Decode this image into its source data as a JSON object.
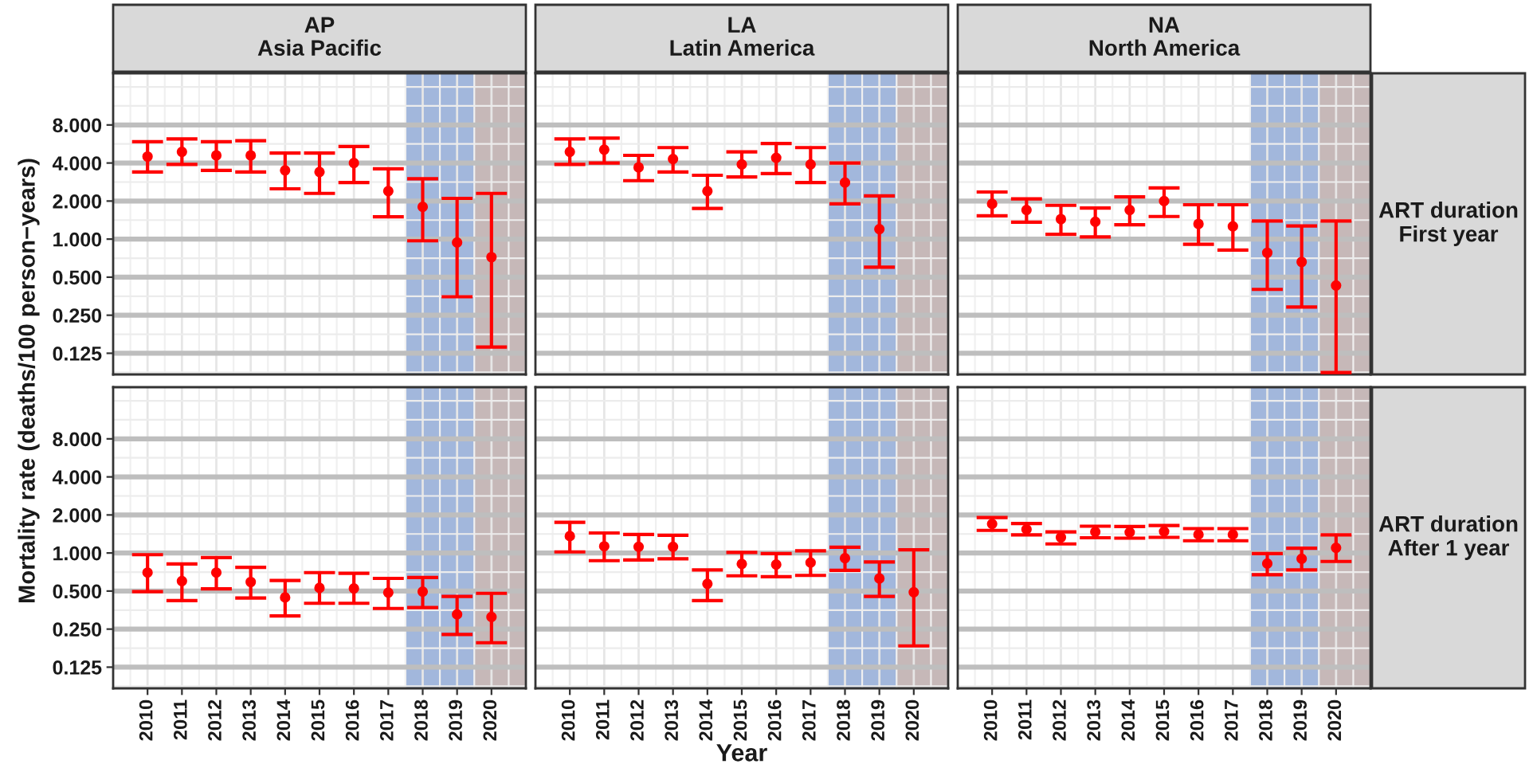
{
  "chart_data": [
    {
      "type": "scatter",
      "title": "AP\nAsia Pacific",
      "ylabel": "Mortality rate (deaths/100 person−years)",
      "log": true,
      "grid": true,
      "marker": "circle",
      "tick_labels": "y",
      "xlim": [
        2009,
        2021
      ],
      "xticks": [
        2010,
        2011,
        2012,
        2013,
        2014,
        2015,
        2016,
        2017,
        2018,
        2019,
        2020
      ],
      "ylim": [
        0.085,
        20.5
      ],
      "yticks": [
        {
          "value": 0.125,
          "label": "0.125"
        },
        {
          "value": 0.25,
          "label": "0.250"
        },
        {
          "value": 0.5,
          "label": "0.500"
        },
        {
          "value": 1,
          "label": "1.000"
        },
        {
          "value": 2,
          "label": "2.000"
        },
        {
          "value": 4,
          "label": "4.000"
        },
        {
          "value": 8,
          "label": "8.000"
        }
      ],
      "bands": [
        {
          "axis": "x",
          "from": 2017.5,
          "to": 2019.5,
          "color": "#a2b7dc"
        },
        {
          "axis": "x",
          "from": 2019.5,
          "to": 2021,
          "color": "#c6b8b8"
        }
      ],
      "series": [
        {
          "color": "#ff0000",
          "x": [
            2010,
            2011,
            2012,
            2013,
            2014,
            2015,
            2016,
            2017,
            2018,
            2019,
            2020
          ],
          "values": [
            4.5,
            4.9,
            4.6,
            4.6,
            3.5,
            3.4,
            4.0,
            2.4,
            1.8,
            0.94,
            0.72
          ],
          "errors": [
            [
              3.4,
              5.9
            ],
            [
              3.9,
              6.2
            ],
            [
              3.5,
              5.9
            ],
            [
              3.4,
              6.0
            ],
            [
              2.5,
              4.8
            ],
            [
              2.3,
              4.8
            ],
            [
              2.8,
              5.4
            ],
            [
              1.5,
              3.6
            ],
            [
              0.97,
              3.0
            ],
            [
              0.35,
              2.1
            ],
            [
              0.14,
              2.3
            ]
          ]
        }
      ]
    },
    {
      "type": "scatter",
      "title": "LA\nLatin America",
      "log": true,
      "grid": true,
      "marker": "circle",
      "tick_labels": false,
      "xlim": [
        2009,
        2021
      ],
      "xticks": [
        2010,
        2011,
        2012,
        2013,
        2014,
        2015,
        2016,
        2017,
        2018,
        2019,
        2020
      ],
      "ylim": [
        0.085,
        20.5
      ],
      "yticks": [
        0.125,
        0.25,
        0.5,
        1,
        2,
        4,
        8
      ],
      "bands": [
        {
          "axis": "x",
          "from": 2017.5,
          "to": 2019.5,
          "color": "#a2b7dc"
        },
        {
          "axis": "x",
          "from": 2019.5,
          "to": 2021,
          "color": "#c6b8b8"
        }
      ],
      "series": [
        {
          "color": "#ff0000",
          "x": [
            2010,
            2011,
            2012,
            2013,
            2014,
            2015,
            2016,
            2017,
            2018,
            2019
          ],
          "values": [
            4.9,
            5.1,
            3.7,
            4.3,
            2.4,
            3.9,
            4.4,
            3.9,
            2.8,
            1.2
          ],
          "errors": [
            [
              3.9,
              6.2
            ],
            [
              4.0,
              6.3
            ],
            [
              2.9,
              4.6
            ],
            [
              3.4,
              5.3
            ],
            [
              1.75,
              3.2
            ],
            [
              3.1,
              4.9
            ],
            [
              3.3,
              5.7
            ],
            [
              2.8,
              5.3
            ],
            [
              1.9,
              4.0
            ],
            [
              0.6,
              2.2
            ]
          ]
        }
      ]
    },
    {
      "type": "scatter",
      "title": "NA\nNorth America",
      "log": true,
      "grid": true,
      "marker": "circle",
      "tick_labels": false,
      "annotations": [
        "ART duration\nFirst year"
      ],
      "xlim": [
        2009,
        2021
      ],
      "xticks": [
        2010,
        2011,
        2012,
        2013,
        2014,
        2015,
        2016,
        2017,
        2018,
        2019,
        2020
      ],
      "ylim": [
        0.085,
        20.5
      ],
      "yticks": [
        0.125,
        0.25,
        0.5,
        1,
        2,
        4,
        8
      ],
      "bands": [
        {
          "axis": "x",
          "from": 2017.5,
          "to": 2019.5,
          "color": "#a2b7dc"
        },
        {
          "axis": "x",
          "from": 2019.5,
          "to": 2021,
          "color": "#c6b8b8"
        }
      ],
      "series": [
        {
          "color": "#ff0000",
          "x": [
            2010,
            2011,
            2012,
            2013,
            2014,
            2015,
            2016,
            2017,
            2018,
            2019,
            2020
          ],
          "values": [
            1.9,
            1.7,
            1.44,
            1.37,
            1.7,
            2.0,
            1.32,
            1.26,
            0.78,
            0.66,
            0.43
          ],
          "errors": [
            [
              1.53,
              2.36
            ],
            [
              1.36,
              2.08
            ],
            [
              1.09,
              1.85
            ],
            [
              1.04,
              1.76
            ],
            [
              1.3,
              2.16
            ],
            [
              1.51,
              2.54
            ],
            [
              0.91,
              1.87
            ],
            [
              0.82,
              1.87
            ],
            [
              0.4,
              1.39
            ],
            [
              0.29,
              1.27
            ],
            [
              0.088,
              1.39
            ]
          ]
        }
      ]
    },
    {
      "type": "scatter",
      "log": true,
      "grid": true,
      "marker": "circle",
      "xlim": [
        2009,
        2021
      ],
      "xticks": [
        2010,
        2011,
        2012,
        2013,
        2014,
        2015,
        2016,
        2017,
        2018,
        2019,
        2020
      ],
      "ylim": [
        0.085,
        20.5
      ],
      "yticks": [
        {
          "value": 0.125,
          "label": "0.125"
        },
        {
          "value": 0.25,
          "label": "0.250"
        },
        {
          "value": 0.5,
          "label": "0.500"
        },
        {
          "value": 1,
          "label": "1.000"
        },
        {
          "value": 2,
          "label": "2.000"
        },
        {
          "value": 4,
          "label": "4.000"
        },
        {
          "value": 8,
          "label": "8.000"
        }
      ],
      "bands": [
        {
          "axis": "x",
          "from": 2017.5,
          "to": 2019.5,
          "color": "#a2b7dc"
        },
        {
          "axis": "x",
          "from": 2019.5,
          "to": 2021,
          "color": "#c6b8b8"
        }
      ],
      "series": [
        {
          "color": "#ff0000",
          "x": [
            2010,
            2011,
            2012,
            2013,
            2014,
            2015,
            2016,
            2017,
            2018,
            2019,
            2020
          ],
          "values": [
            0.7,
            0.6,
            0.7,
            0.59,
            0.445,
            0.53,
            0.525,
            0.486,
            0.495,
            0.327,
            0.312
          ],
          "errors": [
            [
              0.495,
              0.97
            ],
            [
              0.42,
              0.82
            ],
            [
              0.52,
              0.92
            ],
            [
              0.44,
              0.77
            ],
            [
              0.318,
              0.606
            ],
            [
              0.4,
              0.7
            ],
            [
              0.4,
              0.69
            ],
            [
              0.364,
              0.63
            ],
            [
              0.37,
              0.64
            ],
            [
              0.227,
              0.454
            ],
            [
              0.195,
              0.48
            ]
          ]
        }
      ]
    },
    {
      "type": "scatter",
      "xlabel": "Year",
      "log": true,
      "grid": true,
      "marker": "circle",
      "tick_labels": "x",
      "xlim": [
        2009,
        2021
      ],
      "xticks": [
        2010,
        2011,
        2012,
        2013,
        2014,
        2015,
        2016,
        2017,
        2018,
        2019,
        2020
      ],
      "ylim": [
        0.085,
        20.5
      ],
      "yticks": [
        0.125,
        0.25,
        0.5,
        1,
        2,
        4,
        8
      ],
      "bands": [
        {
          "axis": "x",
          "from": 2017.5,
          "to": 2019.5,
          "color": "#a2b7dc"
        },
        {
          "axis": "x",
          "from": 2019.5,
          "to": 2021,
          "color": "#c6b8b8"
        }
      ],
      "series": [
        {
          "color": "#ff0000",
          "x": [
            2010,
            2011,
            2012,
            2013,
            2014,
            2015,
            2016,
            2017,
            2018,
            2019,
            2020
          ],
          "values": [
            1.36,
            1.13,
            1.12,
            1.12,
            0.57,
            0.82,
            0.81,
            0.84,
            0.91,
            0.63,
            0.49
          ],
          "errors": [
            [
              1.02,
              1.75
            ],
            [
              0.87,
              1.44
            ],
            [
              0.88,
              1.4
            ],
            [
              0.9,
              1.38
            ],
            [
              0.42,
              0.735
            ],
            [
              0.66,
              1.01
            ],
            [
              0.65,
              0.99
            ],
            [
              0.665,
              1.04
            ],
            [
              0.73,
              1.11
            ],
            [
              0.454,
              0.85
            ],
            [
              0.184,
              1.06
            ]
          ]
        }
      ]
    },
    {
      "type": "scatter",
      "log": true,
      "grid": true,
      "marker": "circle",
      "tick_labels": "x",
      "annotations": [
        "ART duration\nAfter 1 year"
      ],
      "xlim": [
        2009,
        2021
      ],
      "xticks": [
        2010,
        2011,
        2012,
        2013,
        2014,
        2015,
        2016,
        2017,
        2018,
        2019,
        2020
      ],
      "ylim": [
        0.085,
        20.5
      ],
      "yticks": [
        0.125,
        0.25,
        0.5,
        1,
        2,
        4,
        8
      ],
      "bands": [
        {
          "axis": "x",
          "from": 2017.5,
          "to": 2019.5,
          "color": "#a2b7dc"
        },
        {
          "axis": "x",
          "from": 2019.5,
          "to": 2021,
          "color": "#c6b8b8"
        }
      ],
      "series": [
        {
          "color": "#ff0000",
          "x": [
            2010,
            2011,
            2012,
            2013,
            2014,
            2015,
            2016,
            2017,
            2018,
            2019,
            2020
          ],
          "values": [
            1.7,
            1.54,
            1.33,
            1.47,
            1.46,
            1.48,
            1.4,
            1.4,
            0.825,
            0.9,
            1.1
          ],
          "errors": [
            [
              1.51,
              1.91
            ],
            [
              1.39,
              1.71
            ],
            [
              1.18,
              1.47
            ],
            [
              1.32,
              1.63
            ],
            [
              1.31,
              1.62
            ],
            [
              1.33,
              1.65
            ],
            [
              1.25,
              1.56
            ],
            [
              1.25,
              1.56
            ],
            [
              0.674,
              0.99
            ],
            [
              0.735,
              1.09
            ],
            [
              0.857,
              1.39
            ]
          ]
        }
      ]
    }
  ]
}
